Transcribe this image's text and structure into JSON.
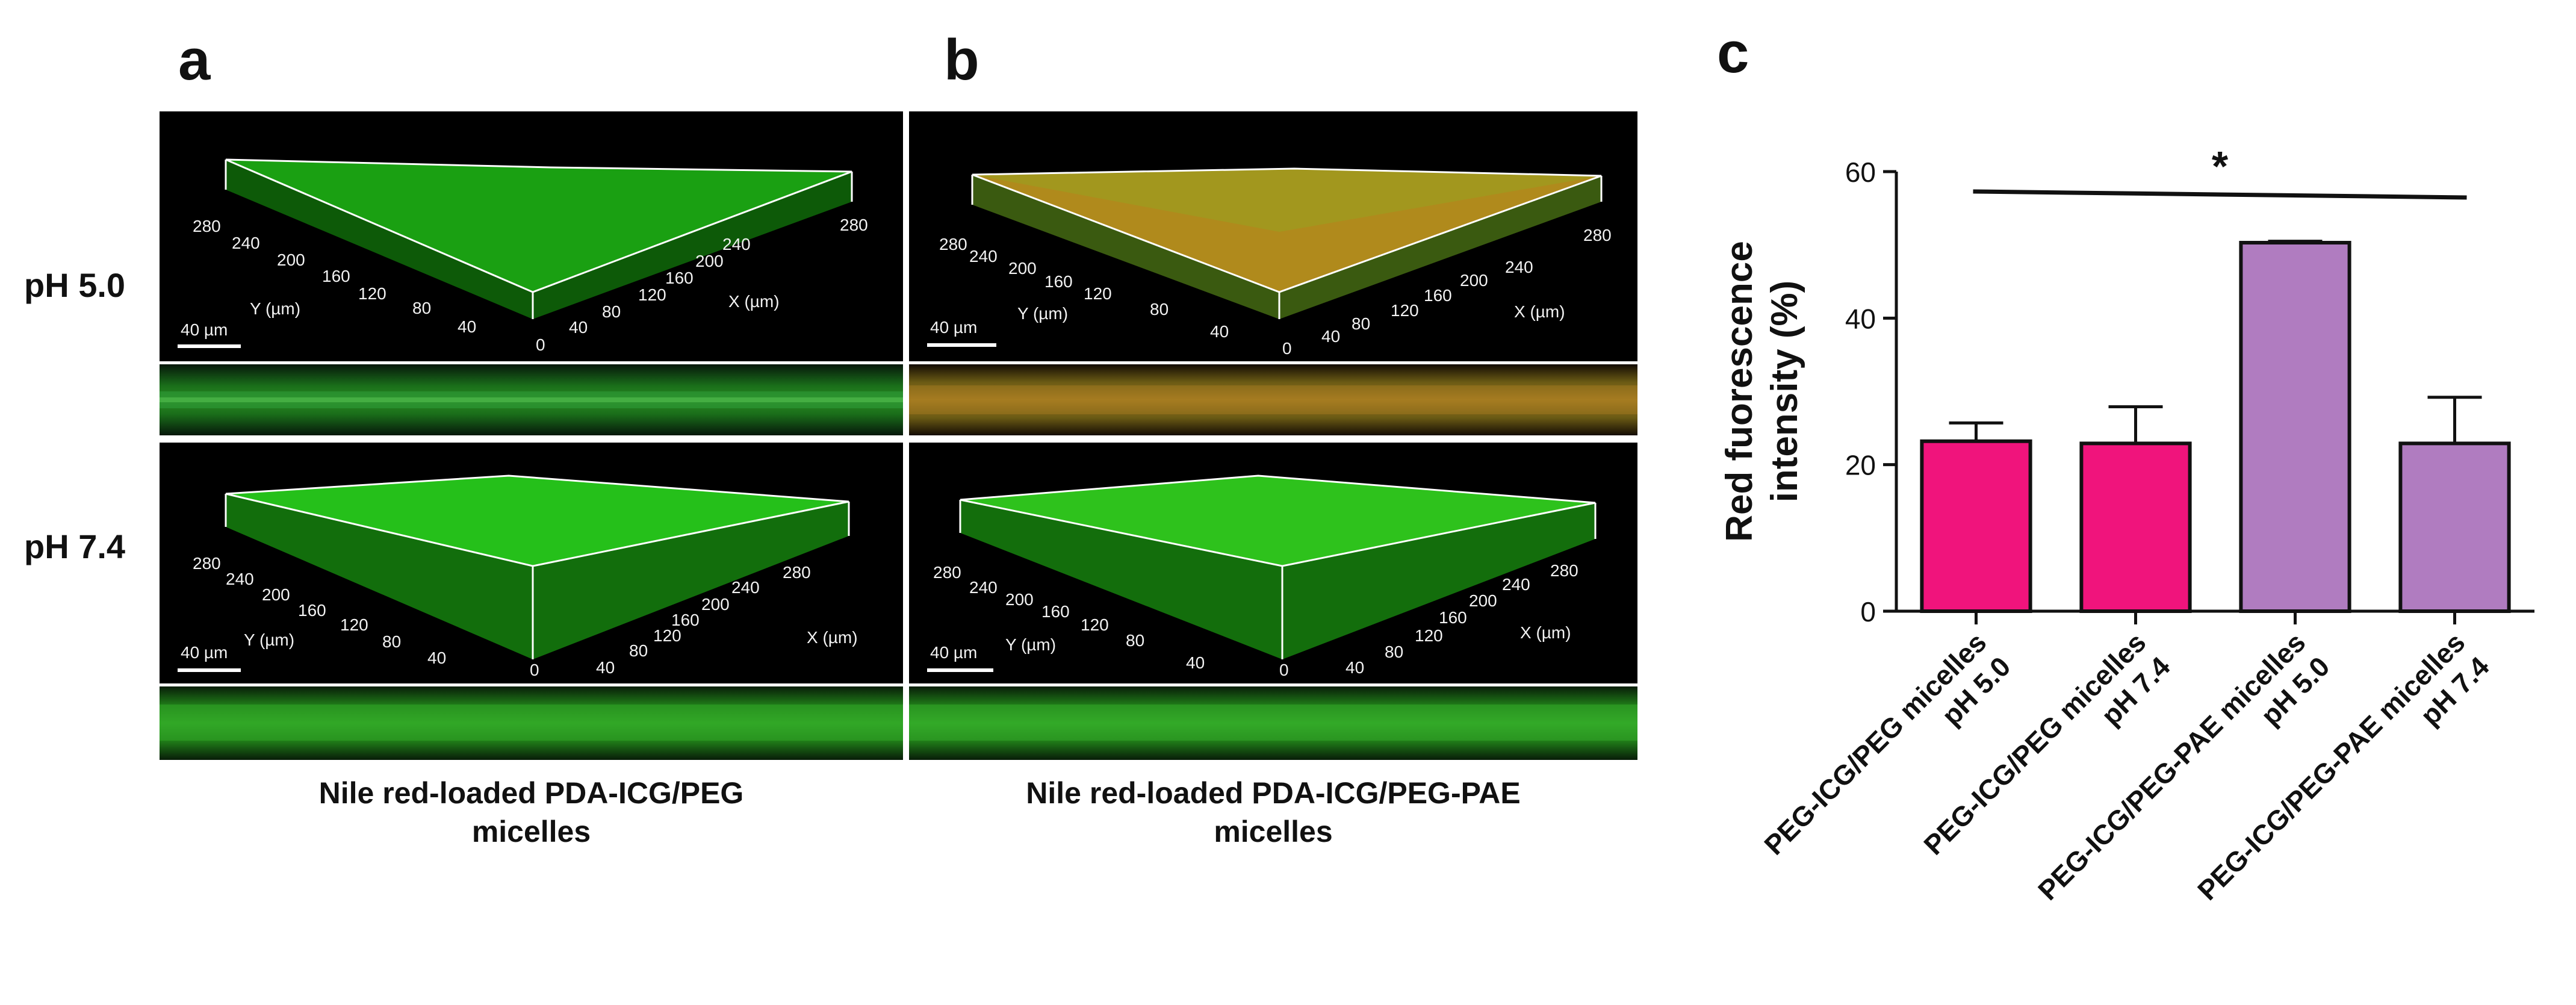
{
  "panels": {
    "a": {
      "letter": "a",
      "caption_line1": "Nile red-loaded PDA-ICG/PEG",
      "caption_line2": "micelles"
    },
    "b": {
      "letter": "b",
      "caption_line1": "Nile red-loaded PDA-ICG/PEG-PAE",
      "caption_line2": "micelles"
    },
    "c": {
      "letter": "c"
    }
  },
  "row_labels": {
    "ph50": "pH 5.0",
    "ph74": "pH 7.4"
  },
  "micrograph_axes": {
    "scale_bar": "40 µm",
    "y_axis_label": "Y (µm)",
    "x_axis_label": "X (µm)",
    "y_ticks": [
      "280",
      "240",
      "200",
      "160",
      "120",
      "80",
      "40"
    ],
    "x_ticks": [
      "0",
      "40",
      "80",
      "120",
      "160",
      "200",
      "240",
      "280"
    ]
  },
  "colors": {
    "peg_bar": "#f0147c",
    "pae_bar": "#b07cc0",
    "green_signal": "#2fd01c",
    "red_signal": "#c03010",
    "image_bg": "#000000"
  },
  "chart_data": {
    "type": "bar",
    "ylabel_line1": "Red fuorescence",
    "ylabel_line2": "intensity (%)",
    "ylim": [
      0,
      60
    ],
    "yticks": [
      0,
      20,
      40,
      60
    ],
    "categories": [
      {
        "line1": "PEG-ICG/PEG micelles",
        "line2": "pH 5.0"
      },
      {
        "line1": "PEG-ICG/PEG micelles",
        "line2": "pH 7.4"
      },
      {
        "line1": "PEG-ICG/PEG-PAE micelles",
        "line2": "pH 5.0"
      },
      {
        "line1": "PEG-ICG/PEG-PAE micelles",
        "line2": "pH 7.4"
      }
    ],
    "values": [
      23.2,
      22.9,
      50.3,
      22.9
    ],
    "errors": [
      2.5,
      5.0,
      0.2,
      6.3
    ],
    "significance": {
      "from": 0,
      "to": 3,
      "label": "*"
    }
  }
}
